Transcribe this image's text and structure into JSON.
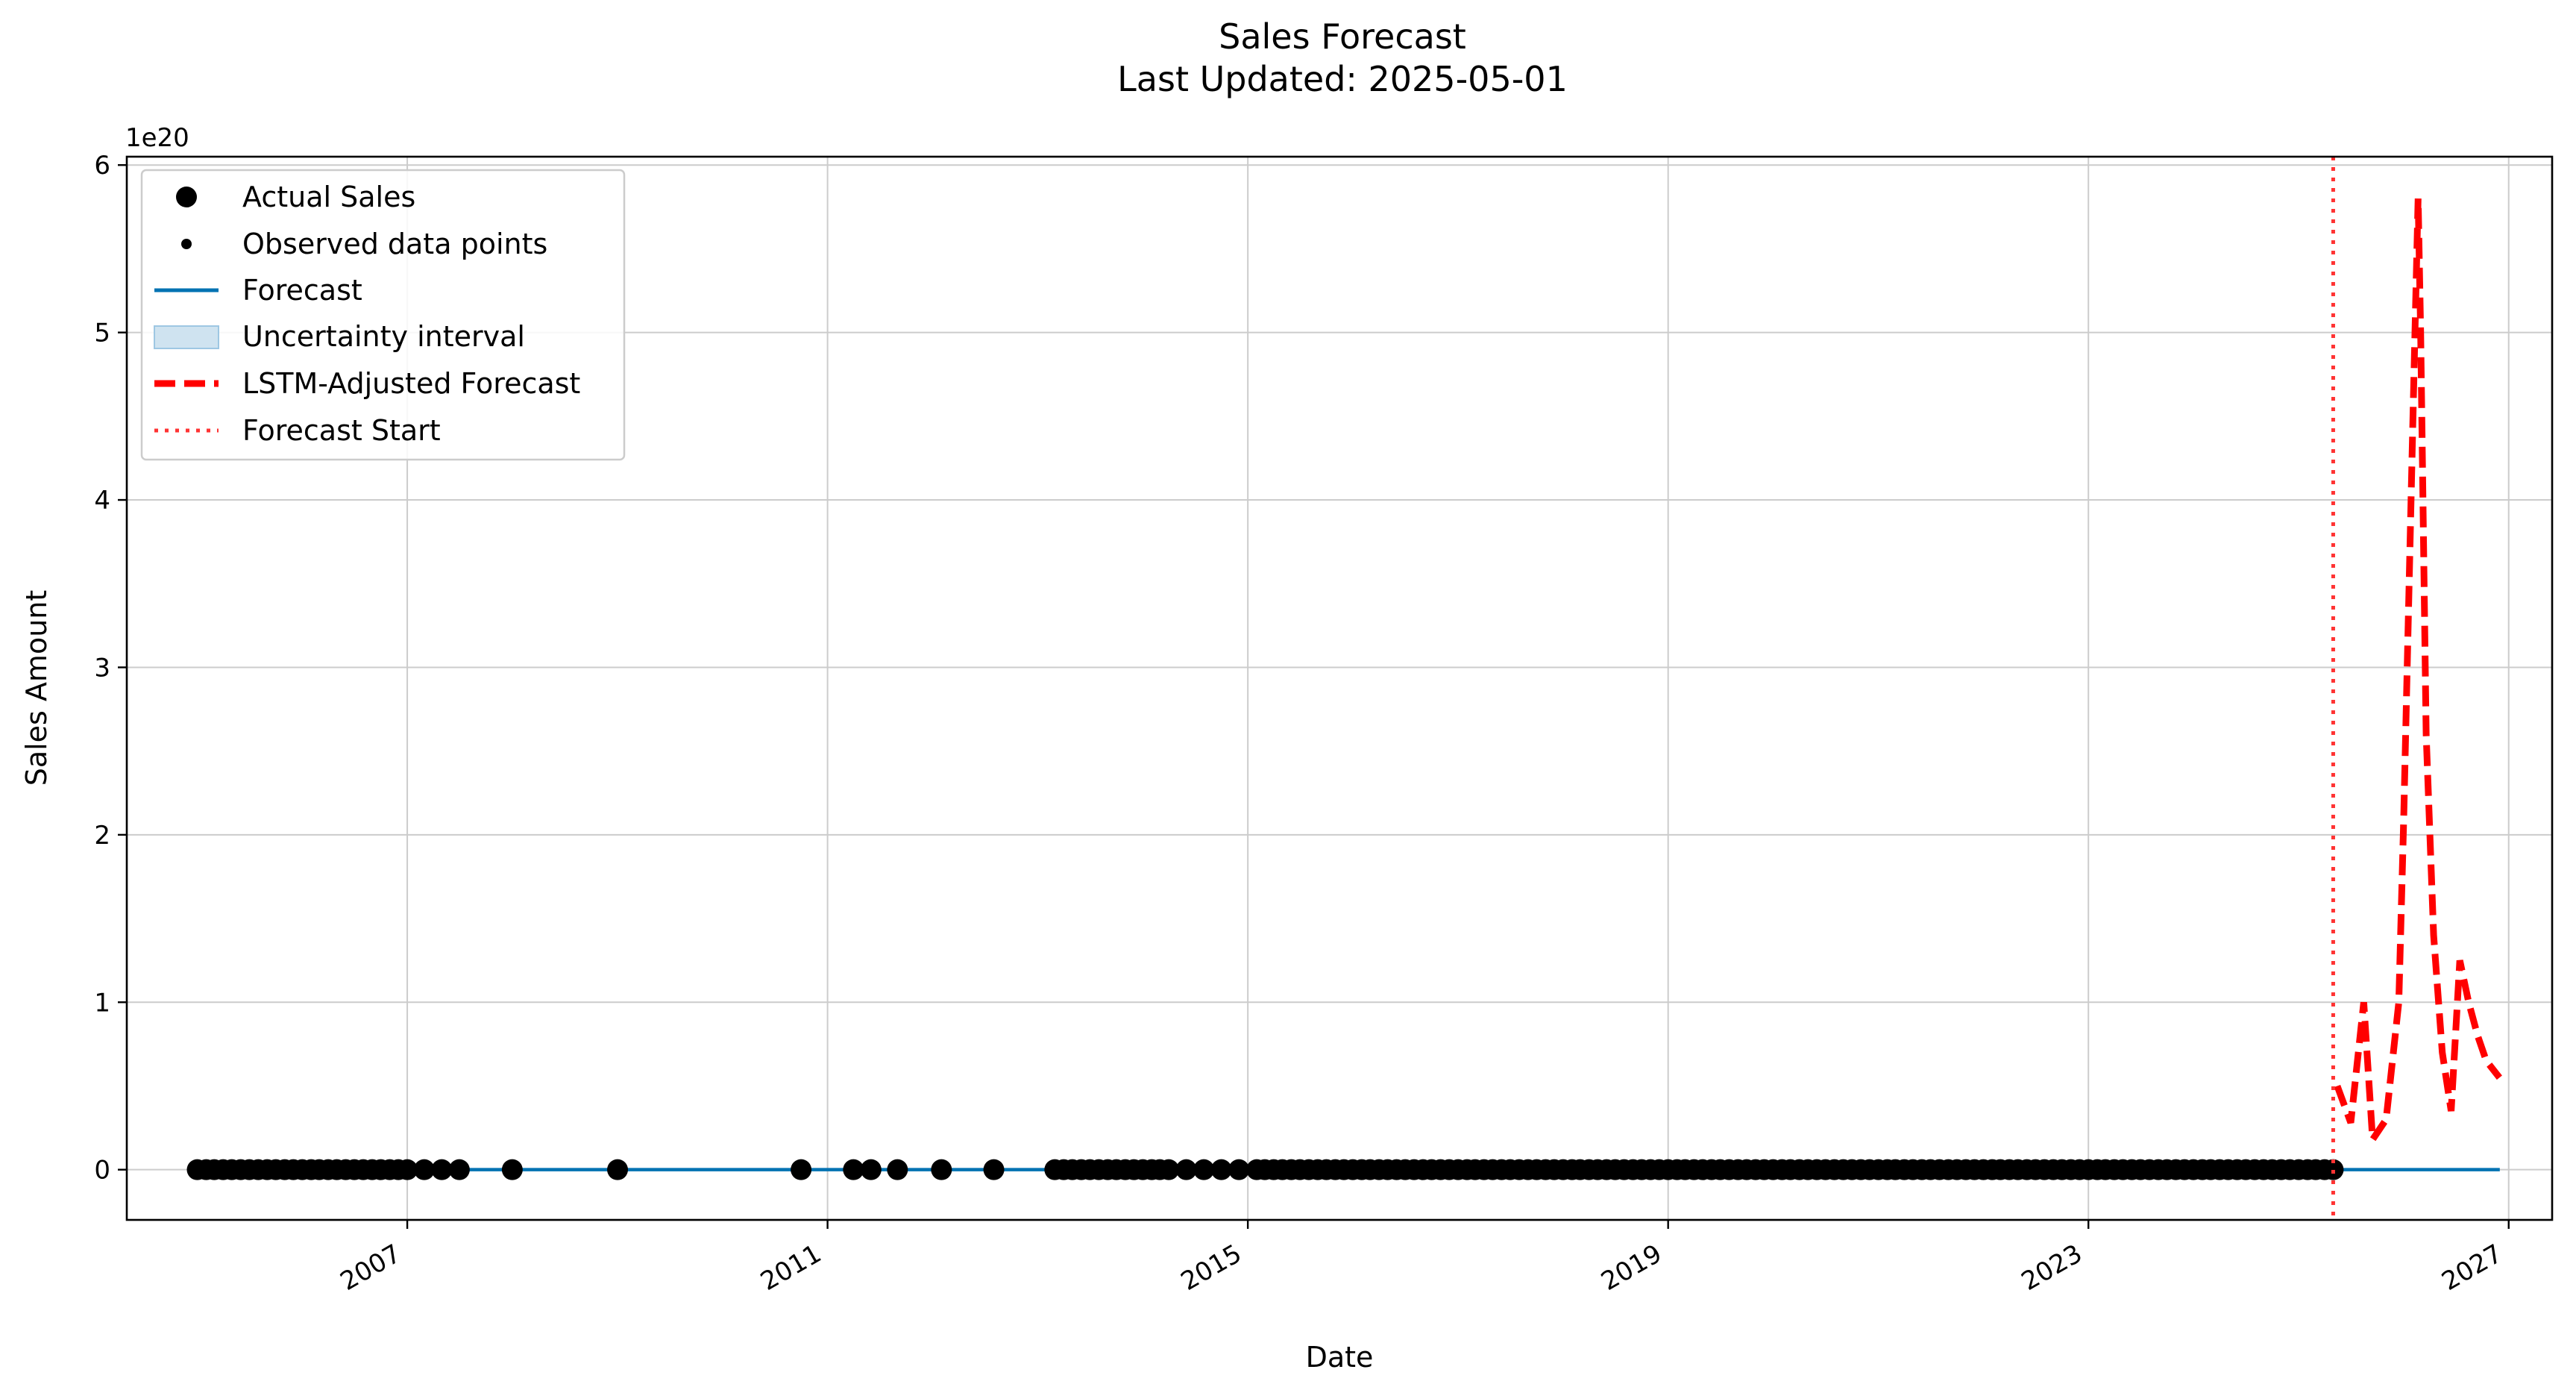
{
  "chart_data": {
    "type": "line",
    "title": "Sales Forecast",
    "subtitle": "Last Updated: 2025-05-01",
    "xlabel": "Date",
    "ylabel": "Sales Amount",
    "y_offset_label": "1e20",
    "y_unit_scale": 1e+20,
    "xlim": [
      "2004-05-01",
      "2027-06-01"
    ],
    "ylim": [
      -0.3,
      6.05
    ],
    "x_ticks": [
      "2007",
      "2011",
      "2015",
      "2019",
      "2023",
      "2027"
    ],
    "y_ticks": [
      0,
      1,
      2,
      3,
      4,
      5,
      6
    ],
    "grid": true,
    "legend_placement": "top-left",
    "legend": [
      "Actual Sales",
      "Observed data points",
      "Forecast",
      "Uncertainty interval",
      "LSTM-Adjusted Forecast",
      "Forecast Start"
    ],
    "colors": {
      "actual": "#000000",
      "forecast": "#0072B2",
      "uncertainty": "#cfe3f0",
      "lstm": "#ff0000",
      "forecast_start": "#ff3333",
      "grid": "#cccccc"
    },
    "forecast_start": "2025-05-01",
    "actual_sales": {
      "value": 0,
      "dates": [
        "2005-01-01",
        "2005-02-01",
        "2005-03-01",
        "2005-04-01",
        "2005-05-01",
        "2005-06-01",
        "2005-07-01",
        "2005-08-01",
        "2005-09-01",
        "2005-10-01",
        "2005-11-01",
        "2005-12-01",
        "2006-01-01",
        "2006-02-01",
        "2006-03-01",
        "2006-04-01",
        "2006-05-01",
        "2006-06-01",
        "2006-07-01",
        "2006-08-01",
        "2006-09-01",
        "2006-10-01",
        "2006-11-01",
        "2006-12-01",
        "2007-01-01",
        "2007-03-01",
        "2007-05-01",
        "2007-07-01",
        "2008-01-01",
        "2009-01-01",
        "2010-10-01",
        "2011-04-01",
        "2011-06-01",
        "2011-09-01",
        "2012-02-01",
        "2012-08-01",
        "2013-03-01",
        "2013-04-01",
        "2013-05-01",
        "2013-06-01",
        "2013-07-01",
        "2013-08-01",
        "2013-09-01",
        "2013-10-01",
        "2013-11-01",
        "2013-12-01",
        "2014-01-01",
        "2014-02-01",
        "2014-03-01",
        "2014-04-01",
        "2014-06-01",
        "2014-08-01",
        "2014-10-01",
        "2014-12-01",
        "2015-02-01",
        "2015-03-01"
      ],
      "continuous_from": "2015-04-01",
      "continuous_to": "2025-05-01"
    },
    "forecast_line": {
      "start": "2005-01-01",
      "end": "2026-12-01",
      "value": 0
    },
    "lstm_adjusted": {
      "x": [
        "2025-05-15",
        "2025-07-01",
        "2025-08-15",
        "2025-09-15",
        "2025-11-01",
        "2025-12-15",
        "2026-01-01",
        "2026-02-01",
        "2026-02-20",
        "2026-03-01",
        "2026-03-20",
        "2026-04-15",
        "2026-05-15",
        "2026-06-15",
        "2026-07-15",
        "2026-08-15",
        "2026-09-15",
        "2026-10-15",
        "2026-11-30"
      ],
      "y": [
        0.5,
        0.28,
        1.0,
        0.18,
        0.3,
        1.0,
        2.1,
        4.4,
        5.8,
        5.0,
        2.6,
        1.4,
        0.7,
        0.35,
        1.25,
        1.0,
        0.8,
        0.65,
        0.55
      ]
    }
  }
}
